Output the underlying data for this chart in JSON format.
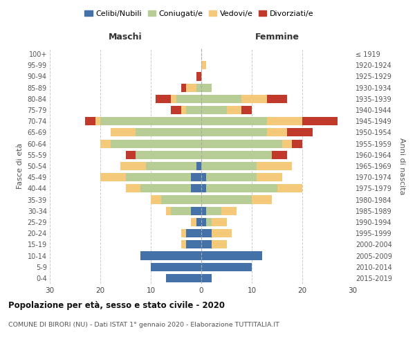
{
  "age_groups": [
    "0-4",
    "5-9",
    "10-14",
    "15-19",
    "20-24",
    "25-29",
    "30-34",
    "35-39",
    "40-44",
    "45-49",
    "50-54",
    "55-59",
    "60-64",
    "65-69",
    "70-74",
    "75-79",
    "80-84",
    "85-89",
    "90-94",
    "95-99",
    "100+"
  ],
  "birth_years": [
    "2015-2019",
    "2010-2014",
    "2005-2009",
    "2000-2004",
    "1995-1999",
    "1990-1994",
    "1985-1989",
    "1980-1984",
    "1975-1979",
    "1970-1974",
    "1965-1969",
    "1960-1964",
    "1955-1959",
    "1950-1954",
    "1945-1949",
    "1940-1944",
    "1935-1939",
    "1930-1934",
    "1925-1929",
    "1920-1924",
    "≤ 1919"
  ],
  "maschi_celibi": [
    7,
    10,
    12,
    3,
    3,
    1,
    2,
    0,
    2,
    2,
    1,
    0,
    0,
    0,
    0,
    0,
    0,
    0,
    0,
    0,
    0
  ],
  "maschi_coniugati": [
    0,
    0,
    0,
    0,
    0,
    0,
    4,
    8,
    10,
    13,
    10,
    13,
    18,
    13,
    20,
    3,
    5,
    1,
    0,
    0,
    0
  ],
  "maschi_vedovi": [
    0,
    0,
    0,
    1,
    1,
    1,
    1,
    2,
    3,
    5,
    5,
    0,
    2,
    5,
    1,
    1,
    1,
    2,
    0,
    0,
    0
  ],
  "maschi_divorziati": [
    0,
    0,
    0,
    0,
    0,
    0,
    0,
    0,
    0,
    0,
    0,
    2,
    0,
    0,
    2,
    2,
    3,
    1,
    1,
    0,
    0
  ],
  "femmine_celibi": [
    2,
    10,
    12,
    2,
    2,
    1,
    1,
    0,
    1,
    1,
    0,
    0,
    0,
    0,
    0,
    0,
    0,
    0,
    0,
    0,
    0
  ],
  "femmine_coniugati": [
    0,
    0,
    0,
    0,
    0,
    1,
    3,
    10,
    14,
    10,
    11,
    14,
    16,
    13,
    13,
    5,
    8,
    2,
    0,
    0,
    0
  ],
  "femmine_vedovi": [
    0,
    0,
    0,
    3,
    4,
    3,
    3,
    4,
    5,
    5,
    7,
    0,
    2,
    4,
    7,
    3,
    5,
    0,
    0,
    1,
    0
  ],
  "femmine_divorziati": [
    0,
    0,
    0,
    0,
    0,
    0,
    0,
    0,
    0,
    0,
    0,
    3,
    2,
    5,
    7,
    2,
    4,
    0,
    0,
    0,
    0
  ],
  "colors": {
    "celibi": "#4472a8",
    "coniugati": "#b8cc96",
    "vedovi": "#f5c97a",
    "divorziati": "#c0392b"
  },
  "xlim": 30,
  "title": "Popolazione per età, sesso e stato civile - 2020",
  "subtitle": "COMUNE DI BIRORI (NU) - Dati ISTAT 1° gennaio 2020 - Elaborazione TUTTITALIA.IT",
  "ylabel_left": "Fasce di età",
  "ylabel_right": "Anni di nascita",
  "xlabel_left": "Maschi",
  "xlabel_right": "Femmine",
  "legend_labels": [
    "Celibi/Nubili",
    "Coniugati/e",
    "Vedovi/e",
    "Divorziati/e"
  ],
  "background_color": "#ffffff",
  "grid_color": "#cccccc"
}
